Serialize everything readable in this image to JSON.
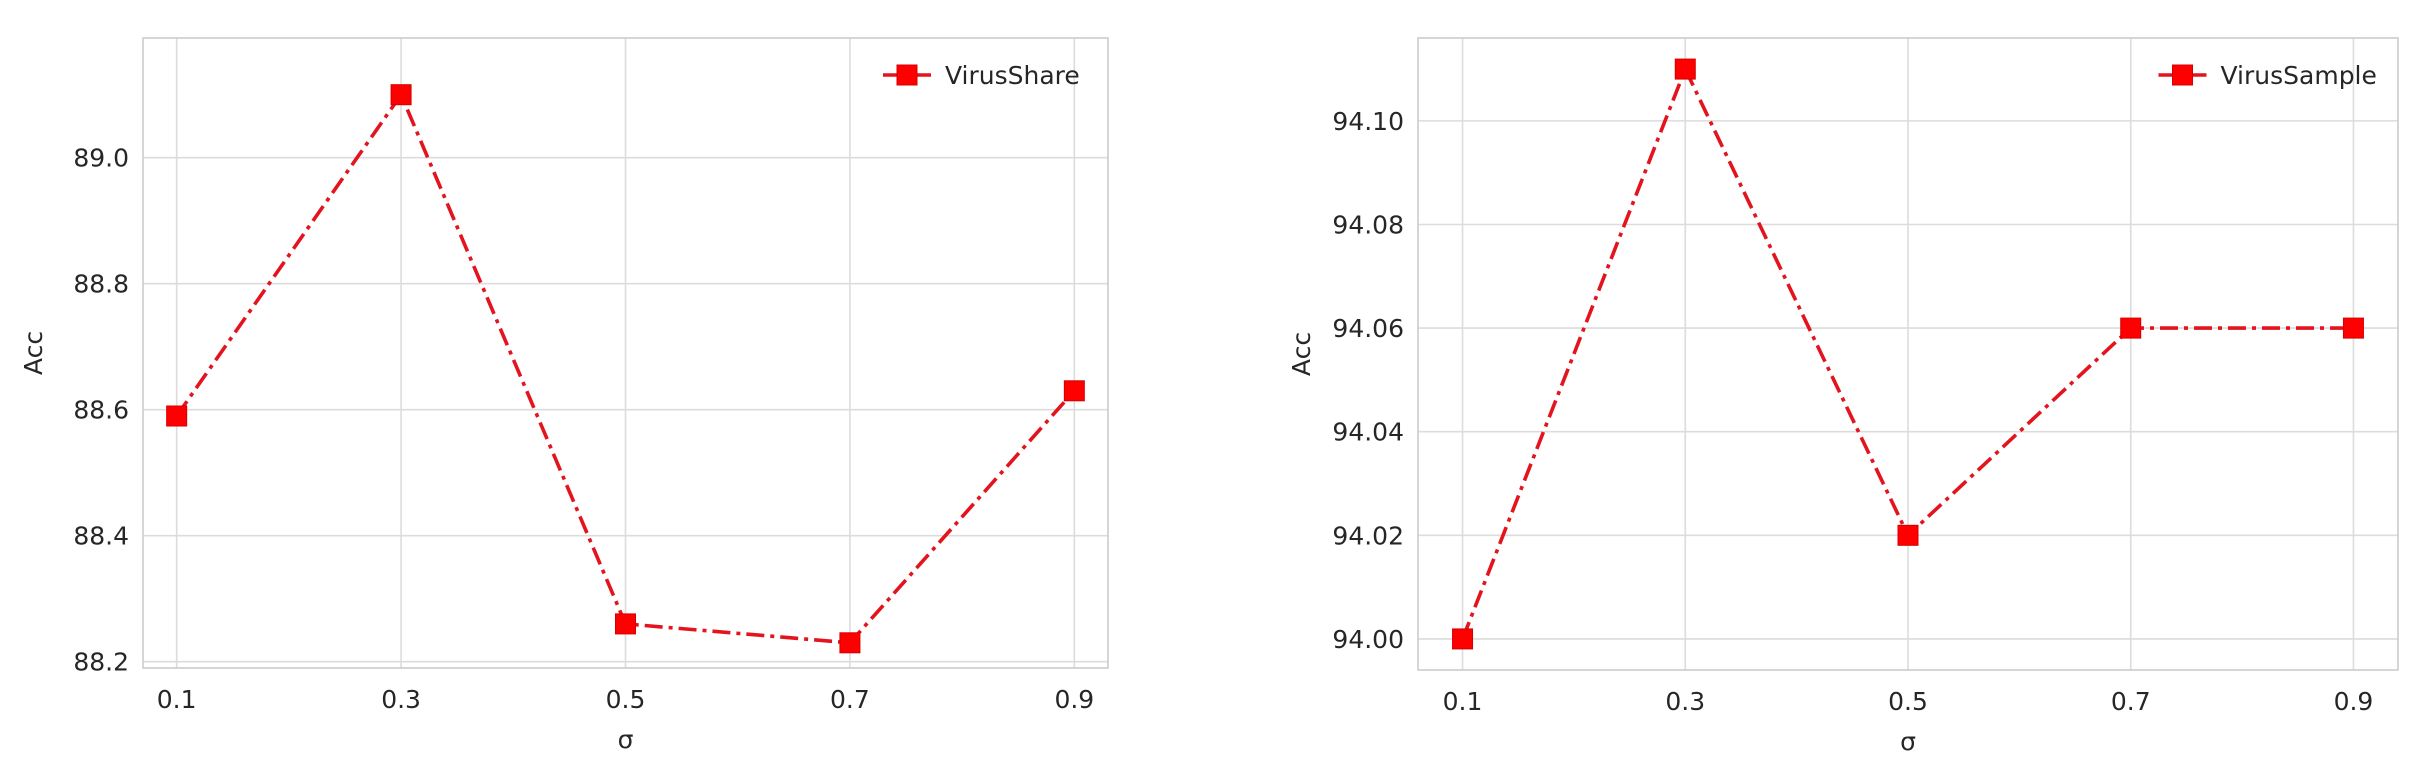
{
  "chart_data": [
    {
      "type": "line",
      "title": "",
      "xlabel": "σ",
      "ylabel": "Acc",
      "x": [
        0.1,
        0.3,
        0.5,
        0.7,
        0.9
      ],
      "x_tick_labels": [
        "0.1",
        "0.3",
        "0.5",
        "0.7",
        "0.9"
      ],
      "y_ticks": [
        88.2,
        88.4,
        88.6,
        88.8,
        89.0
      ],
      "y_tick_labels": [
        "88.2",
        "88.4",
        "88.6",
        "88.8",
        "89.0"
      ],
      "xlim": [
        0.07,
        0.93
      ],
      "ylim": [
        88.19,
        89.19
      ],
      "grid": true,
      "legend": "top-right",
      "series": [
        {
          "name": "VirusShare",
          "values": [
            88.59,
            89.1,
            88.26,
            88.23,
            88.63
          ],
          "color": "#e3141e",
          "marker": "square",
          "line_style": "dashdot"
        }
      ]
    },
    {
      "type": "line",
      "title": "",
      "xlabel": "σ",
      "ylabel": "Acc",
      "x": [
        0.1,
        0.3,
        0.5,
        0.7,
        0.9
      ],
      "x_tick_labels": [
        "0.1",
        "0.3",
        "0.5",
        "0.7",
        "0.9"
      ],
      "y_ticks": [
        94.0,
        94.02,
        94.04,
        94.06,
        94.08,
        94.1
      ],
      "y_tick_labels": [
        "94.00",
        "94.02",
        "94.04",
        "94.06",
        "94.08",
        "94.10"
      ],
      "xlim": [
        0.06,
        0.94
      ],
      "ylim": [
        93.994,
        94.116
      ],
      "grid": true,
      "legend": "top-right",
      "series": [
        {
          "name": "VirusSample",
          "values": [
            94.0,
            94.11,
            94.02,
            94.06,
            94.06
          ],
          "color": "#e3141e",
          "marker": "square",
          "line_style": "dashdot"
        }
      ]
    }
  ]
}
